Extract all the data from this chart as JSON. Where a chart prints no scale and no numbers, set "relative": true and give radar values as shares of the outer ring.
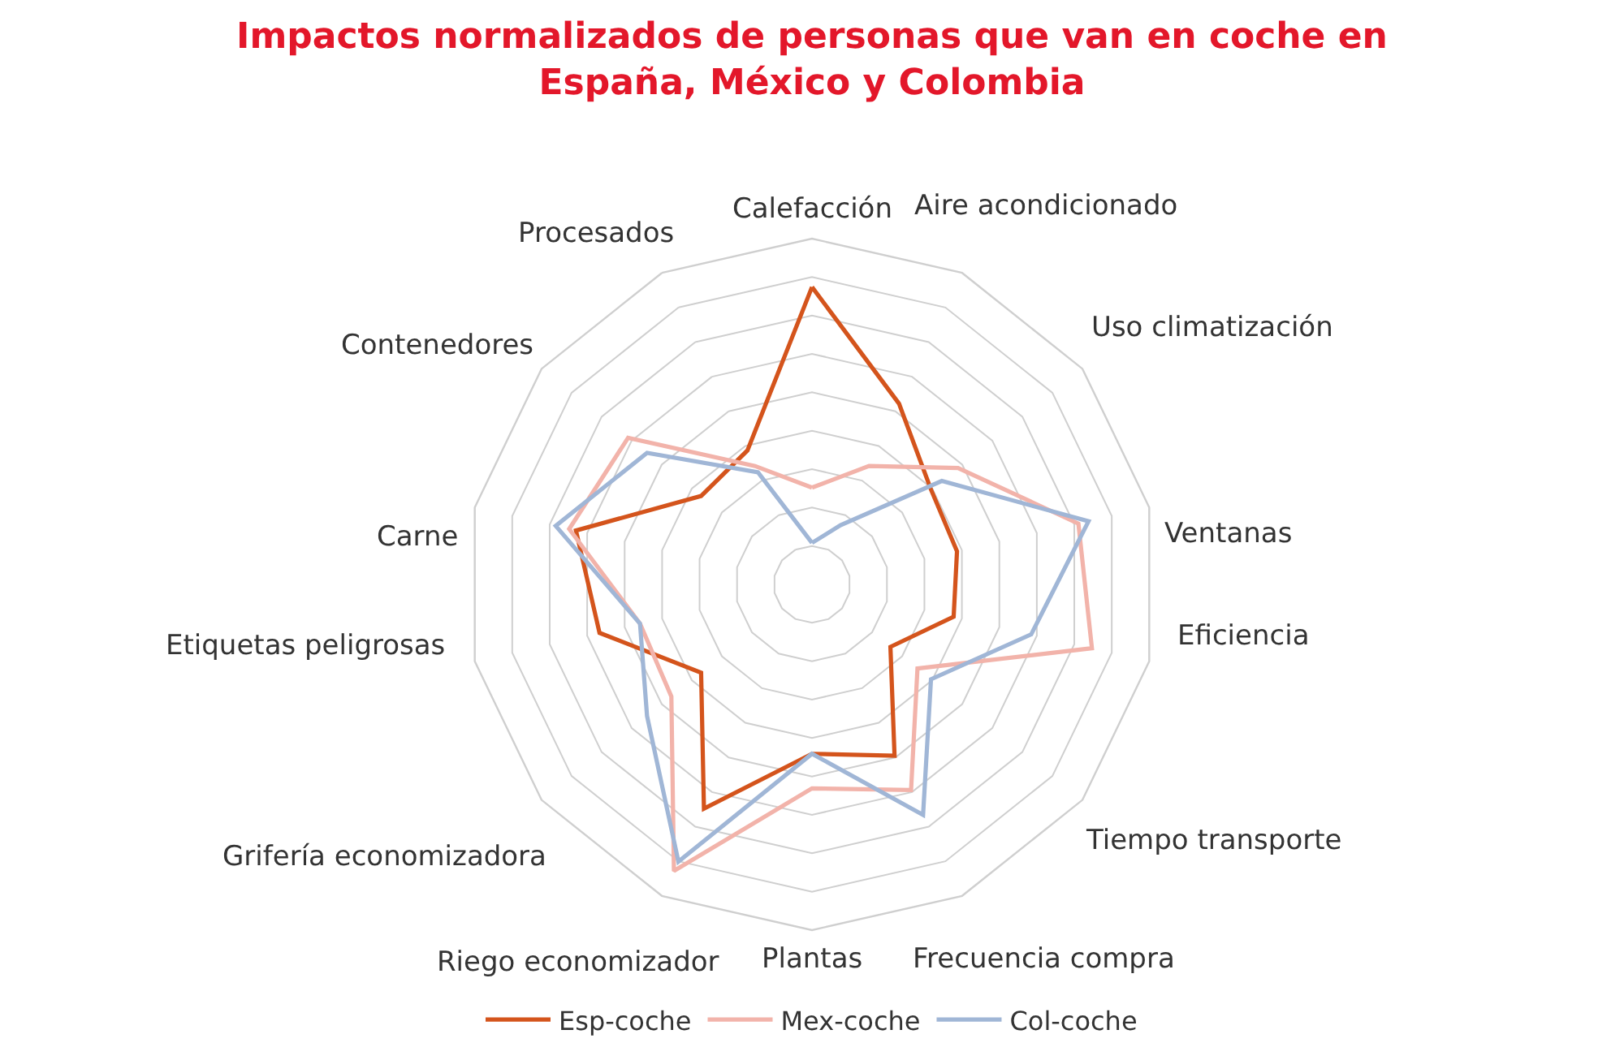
{
  "chart_data": {
    "type": "radar",
    "title": "Impactos normalizados de personas que van en coche en\nEspaña, México y Colombia",
    "categories": [
      "Calefacción",
      "Aire acondicionado",
      "Uso climatización",
      "Ventanas",
      "Eficiencia",
      "Tiempo transporte",
      "Frecuencia compra",
      "Plantas",
      "Riego economizador",
      "Grifería economizadora",
      "Etiquetas peligrosas",
      "Carne",
      "Contenedores",
      "Procesados"
    ],
    "relative": true,
    "grid": true,
    "legend": "bottom",
    "marker": "none",
    "line_style": "solid",
    "series": [
      {
        "name": "Esp-coche",
        "color": "#d4541c",
        "values": [
          0.86,
          0.58,
          0.44,
          0.43,
          0.42,
          0.29,
          0.55,
          0.49,
          0.72,
          0.41,
          0.63,
          0.7,
          0.41,
          0.43
        ]
      },
      {
        "name": "Mex-coche",
        "color": "#f2b3aa",
        "values": [
          0.28,
          0.38,
          0.54,
          0.79,
          0.83,
          0.39,
          0.66,
          0.59,
          0.92,
          0.52,
          0.51,
          0.72,
          0.68,
          0.38
        ]
      },
      {
        "name": "Col-coche",
        "color": "#a0b6d6",
        "values": [
          0.12,
          0.19,
          0.48,
          0.82,
          0.65,
          0.44,
          0.74,
          0.49,
          0.89,
          0.61,
          0.51,
          0.76,
          0.61,
          0.36
        ]
      }
    ]
  }
}
